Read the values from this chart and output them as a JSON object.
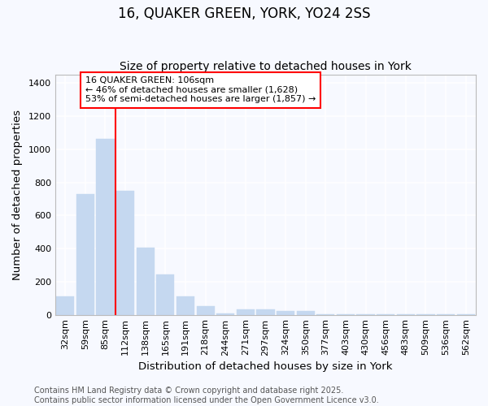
{
  "title": "16, QUAKER GREEN, YORK, YO24 2SS",
  "subtitle": "Size of property relative to detached houses in York",
  "xlabel": "Distribution of detached houses by size in York",
  "ylabel": "Number of detached properties",
  "categories": [
    "32sqm",
    "59sqm",
    "85sqm",
    "112sqm",
    "138sqm",
    "165sqm",
    "191sqm",
    "218sqm",
    "244sqm",
    "271sqm",
    "297sqm",
    "324sqm",
    "350sqm",
    "377sqm",
    "403sqm",
    "430sqm",
    "456sqm",
    "483sqm",
    "509sqm",
    "536sqm",
    "562sqm"
  ],
  "values": [
    110,
    730,
    1065,
    750,
    405,
    245,
    110,
    50,
    10,
    30,
    30,
    20,
    20,
    2,
    2,
    2,
    2,
    1,
    1,
    1,
    1
  ],
  "bar_color": "#c5d8f0",
  "bar_edge_color": "#c5d8f0",
  "vline_x_index": 3,
  "vline_color": "red",
  "annotation_box_text": "16 QUAKER GREEN: 106sqm\n← 46% of detached houses are smaller (1,628)\n53% of semi-detached houses are larger (1,857) →",
  "ylim": [
    0,
    1450
  ],
  "yticks": [
    0,
    200,
    400,
    600,
    800,
    1000,
    1200,
    1400
  ],
  "background_color": "#f7f9ff",
  "plot_bg_color": "#f7f9ff",
  "grid_color": "#ffffff",
  "footer_text": "Contains HM Land Registry data © Crown copyright and database right 2025.\nContains public sector information licensed under the Open Government Licence v3.0.",
  "title_fontsize": 12,
  "subtitle_fontsize": 10,
  "axis_label_fontsize": 9.5,
  "tick_fontsize": 8,
  "annotation_fontsize": 8,
  "footer_fontsize": 7
}
